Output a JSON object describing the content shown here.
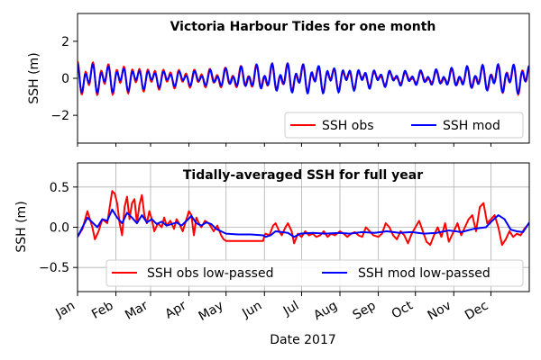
{
  "chart_data": [
    {
      "type": "line",
      "title": "Victoria Harbour Tides for one month",
      "ylabel": "SSH (m)",
      "ylim": [
        -3.5,
        3.5
      ],
      "yticks": [
        -2,
        0,
        2
      ],
      "ytick_labels": [
        "−2",
        "0",
        "2"
      ],
      "grid": false,
      "legend_position": "bottom-right",
      "legend_columns": 2,
      "x_days": [
        0,
        30
      ],
      "tides": {
        "semidiurnal_amp": 0.5,
        "diurnal_amp": 0.38,
        "semidiurnal_period_days": 0.5175,
        "diurnal_period_days": 0.9973,
        "obs_extra_amp": 0.12
      },
      "series": [
        {
          "name": "SSH obs",
          "color": "#ff0000"
        },
        {
          "name": "SSH mod",
          "color": "#0000ff"
        }
      ]
    },
    {
      "type": "line",
      "title": "Tidally-averaged SSH for full year",
      "ylabel": "SSH (m)",
      "xlabel": "Date 2017",
      "ylim": [
        -0.8,
        0.8
      ],
      "yticks": [
        -0.5,
        0.0,
        0.5
      ],
      "ytick_labels": [
        "−0.5",
        "0.0",
        "0.5"
      ],
      "grid": true,
      "legend_position": "bottom-center",
      "legend_columns": 2,
      "x_tick_months": [
        "Jan",
        "Feb",
        "Mar",
        "Apr",
        "May",
        "Jun",
        "Jul",
        "Aug",
        "Sep",
        "Oct",
        "Nov",
        "Dec"
      ],
      "x_tick_days": [
        0,
        31,
        59,
        90,
        120,
        151,
        181,
        212,
        243,
        273,
        304,
        334
      ],
      "x_range_days": [
        0,
        365
      ],
      "series": [
        {
          "name": "SSH obs low-passed",
          "color": "#ff0000",
          "x": [
            0,
            4,
            8,
            12,
            14,
            17,
            20,
            24,
            28,
            30,
            32,
            34,
            36,
            38,
            40,
            42,
            44,
            46,
            48,
            50,
            52,
            54,
            56,
            58,
            60,
            62,
            65,
            68,
            70,
            72,
            75,
            78,
            80,
            82,
            85,
            88,
            90,
            92,
            94,
            96,
            98,
            100,
            103,
            106,
            110,
            113,
            116,
            118,
            120,
            124,
            130,
            140,
            150,
            151,
            152,
            155,
            158,
            160,
            163,
            165,
            168,
            170,
            173,
            175,
            178,
            181,
            184,
            187,
            190,
            193,
            196,
            199,
            202,
            205,
            208,
            212,
            215,
            218,
            221,
            224,
            227,
            230,
            233,
            236,
            239,
            243,
            246,
            249,
            252,
            255,
            258,
            261,
            264,
            267,
            270,
            273,
            276,
            279,
            282,
            285,
            288,
            291,
            294,
            297,
            300,
            304,
            307,
            310,
            313,
            316,
            319,
            322,
            325,
            328,
            331,
            334,
            337,
            340,
            343,
            346,
            349,
            352,
            355,
            358,
            361,
            365
          ],
          "values": [
            -0.12,
            -0.02,
            0.2,
            0.0,
            -0.15,
            -0.05,
            0.1,
            0.05,
            0.45,
            0.42,
            0.3,
            0.05,
            -0.1,
            0.25,
            0.38,
            0.1,
            0.3,
            0.35,
            0.05,
            0.28,
            0.4,
            0.15,
            0.05,
            0.2,
            0.1,
            -0.05,
            0.05,
            0.0,
            0.12,
            0.02,
            0.08,
            -0.02,
            0.1,
            0.05,
            -0.05,
            0.1,
            0.2,
            0.15,
            -0.1,
            0.12,
            0.05,
            0.0,
            0.08,
            0.05,
            -0.05,
            0.02,
            -0.1,
            -0.15,
            -0.17,
            -0.17,
            -0.17,
            -0.17,
            -0.17,
            -0.1,
            -0.08,
            -0.1,
            0.02,
            0.05,
            -0.05,
            -0.1,
            0.0,
            0.05,
            -0.05,
            -0.2,
            -0.08,
            -0.12,
            -0.05,
            -0.1,
            -0.08,
            -0.12,
            -0.1,
            -0.05,
            -0.12,
            -0.08,
            -0.1,
            -0.05,
            -0.08,
            -0.12,
            -0.08,
            -0.06,
            -0.1,
            -0.12,
            0.0,
            -0.05,
            -0.1,
            -0.12,
            -0.08,
            0.05,
            0.0,
            -0.1,
            -0.15,
            -0.05,
            -0.1,
            -0.2,
            -0.08,
            0.0,
            0.08,
            -0.05,
            -0.18,
            -0.22,
            -0.1,
            0.0,
            -0.12,
            0.05,
            -0.18,
            -0.05,
            0.05,
            -0.1,
            0.0,
            0.1,
            0.15,
            -0.05,
            0.25,
            0.3,
            0.05,
            0.1,
            0.15,
            0.0,
            -0.22,
            -0.15,
            -0.05,
            -0.12,
            -0.08,
            -0.1,
            -0.02,
            0.05
          ]
        },
        {
          "name": "SSH mod low-passed",
          "color": "#0000ff",
          "x": [
            0,
            4,
            8,
            12,
            16,
            20,
            24,
            28,
            32,
            36,
            40,
            44,
            48,
            52,
            56,
            60,
            64,
            68,
            72,
            76,
            80,
            84,
            88,
            92,
            96,
            100,
            104,
            108,
            112,
            116,
            120,
            130,
            140,
            150,
            152,
            156,
            160,
            165,
            170,
            175,
            180,
            190,
            200,
            212,
            220,
            230,
            240,
            250,
            260,
            270,
            280,
            290,
            300,
            310,
            320,
            330,
            335,
            340,
            345,
            350,
            355,
            360,
            365
          ],
          "values": [
            -0.12,
            0.0,
            0.12,
            0.06,
            0.0,
            0.1,
            0.08,
            0.22,
            0.12,
            0.05,
            0.18,
            0.12,
            0.05,
            0.15,
            0.06,
            0.1,
            0.04,
            0.07,
            0.02,
            0.04,
            0.06,
            0.02,
            0.08,
            0.14,
            0.05,
            0.02,
            0.06,
            0.04,
            -0.02,
            -0.05,
            -0.08,
            -0.09,
            -0.09,
            -0.1,
            -0.12,
            -0.1,
            -0.05,
            -0.06,
            -0.07,
            -0.12,
            -0.08,
            -0.07,
            -0.08,
            -0.07,
            -0.08,
            -0.06,
            -0.07,
            -0.05,
            -0.07,
            -0.06,
            -0.08,
            -0.07,
            -0.04,
            -0.06,
            -0.02,
            0.0,
            0.08,
            0.15,
            0.1,
            -0.03,
            -0.05,
            -0.06,
            0.06
          ]
        }
      ]
    }
  ]
}
